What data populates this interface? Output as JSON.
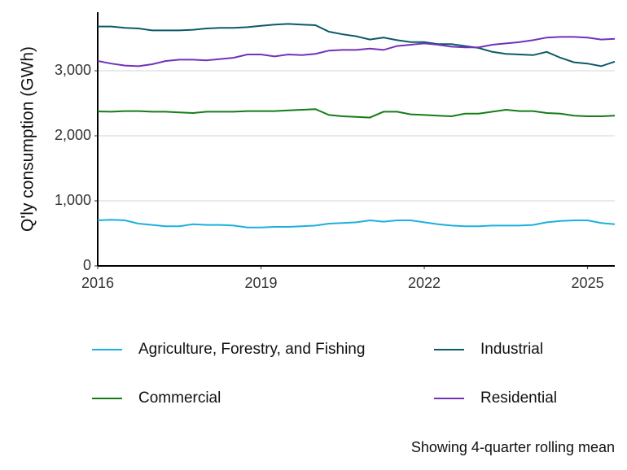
{
  "chart_data": {
    "type": "line",
    "ylabel": "Q'ly consumption (GWh)",
    "annotation": "Showing 4-quarter rolling mean",
    "x": [
      2016,
      2016.25,
      2016.5,
      2016.75,
      2017,
      2017.25,
      2017.5,
      2017.75,
      2018,
      2018.25,
      2018.5,
      2018.75,
      2019,
      2019.25,
      2019.5,
      2019.75,
      2020,
      2020.25,
      2020.5,
      2020.75,
      2021,
      2021.25,
      2021.5,
      2021.75,
      2022,
      2022.25,
      2022.5,
      2022.75,
      2023,
      2023.25,
      2023.5,
      2023.75,
      2024,
      2024.25,
      2024.5,
      2024.75,
      2025,
      2025.25,
      2025.5
    ],
    "series": [
      {
        "name": "Agriculture, Forestry, and Fishing",
        "color": "#1cb0dd",
        "values": [
          700,
          710,
          700,
          650,
          630,
          610,
          610,
          640,
          630,
          630,
          620,
          590,
          590,
          600,
          600,
          610,
          620,
          650,
          660,
          670,
          700,
          680,
          700,
          700,
          670,
          640,
          620,
          610,
          610,
          620,
          620,
          620,
          630,
          670,
          690,
          700,
          700,
          660,
          640
        ]
      },
      {
        "name": "Commercial",
        "color": "#167c16",
        "values": [
          2375,
          2370,
          2380,
          2380,
          2370,
          2370,
          2360,
          2350,
          2370,
          2370,
          2370,
          2380,
          2380,
          2380,
          2390,
          2400,
          2410,
          2320,
          2300,
          2290,
          2280,
          2370,
          2370,
          2330,
          2320,
          2310,
          2300,
          2340,
          2340,
          2370,
          2400,
          2380,
          2380,
          2350,
          2340,
          2310,
          2300,
          2300,
          2310
        ]
      },
      {
        "name": "Industrial",
        "color": "#0c5a68",
        "values": [
          3680,
          3680,
          3660,
          3650,
          3620,
          3620,
          3620,
          3630,
          3650,
          3660,
          3660,
          3670,
          3690,
          3710,
          3720,
          3710,
          3700,
          3600,
          3560,
          3530,
          3480,
          3510,
          3470,
          3440,
          3440,
          3410,
          3410,
          3380,
          3350,
          3290,
          3260,
          3250,
          3240,
          3290,
          3200,
          3130,
          3110,
          3070,
          3140
        ]
      },
      {
        "name": "Residential",
        "color": "#7132b9",
        "values": [
          3150,
          3110,
          3080,
          3070,
          3100,
          3150,
          3170,
          3170,
          3160,
          3180,
          3200,
          3250,
          3250,
          3220,
          3250,
          3240,
          3260,
          3310,
          3320,
          3320,
          3340,
          3320,
          3380,
          3400,
          3420,
          3400,
          3370,
          3360,
          3360,
          3400,
          3420,
          3440,
          3470,
          3510,
          3520,
          3520,
          3510,
          3480,
          3490
        ]
      }
    ],
    "xlim": [
      2016,
      2025.5
    ],
    "xticks": [
      2016,
      2019,
      2022,
      2025
    ],
    "ylim": [
      0,
      3900
    ],
    "yticks": [
      0,
      {
        "value": 1000,
        "label": "1,000"
      },
      {
        "value": 2000,
        "label": "2,000"
      },
      {
        "value": 3000,
        "label": "3,000"
      }
    ],
    "grid": true
  }
}
